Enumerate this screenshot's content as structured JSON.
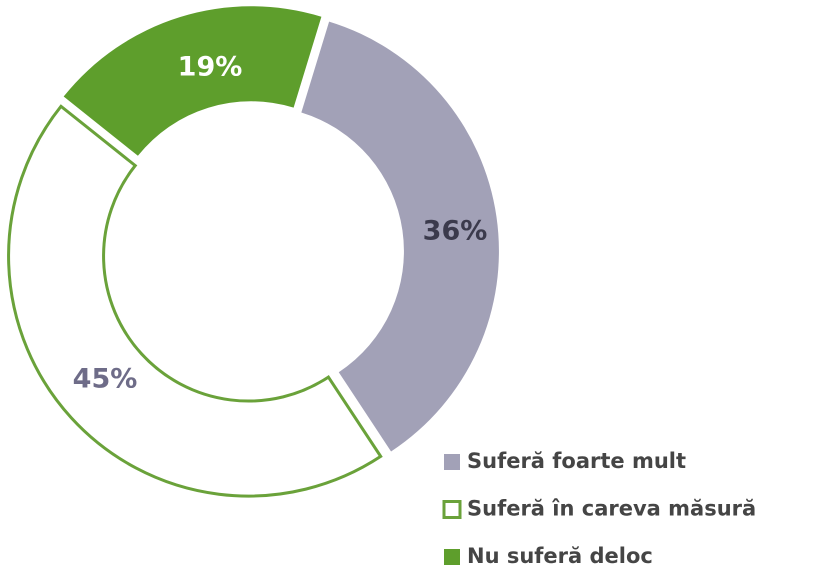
{
  "chart_data": {
    "type": "donut",
    "categories": [
      "Suferă foarte mult",
      "Suferă în careva măsură",
      "Nu suferă deloc"
    ],
    "values": [
      36,
      45,
      19
    ],
    "value_labels": [
      "36%",
      "45%",
      "19%"
    ],
    "colors": [
      "#a2a1b7",
      "#ffffff",
      "#5e9e2c"
    ],
    "legend": "bottom-right"
  }
}
